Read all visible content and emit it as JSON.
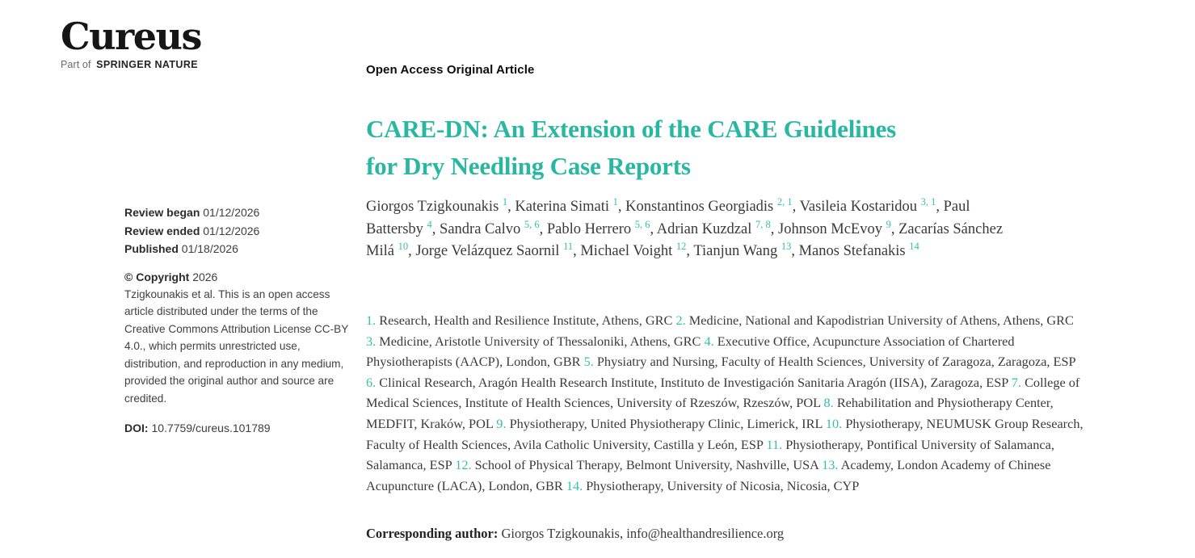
{
  "colors": {
    "accent_teal": "#2ab7a2",
    "accent_teal_light": "#35bfab",
    "text_dark": "#3a3a3a"
  },
  "brand": {
    "wordmark": "Cureus",
    "tagline_prefix": "Part of",
    "tagline_brand": "SPRINGER NATURE"
  },
  "meta": {
    "dates": [
      {
        "label": "Review began",
        "value": "01/12/2026"
      },
      {
        "label": "Review ended",
        "value": "01/12/2026"
      },
      {
        "label": "Published",
        "value": "01/18/2026"
      }
    ],
    "copyright_label": "© Copyright",
    "copyright_year": "2026",
    "copyright_text": "Tzigkounakis et al. This is an open access article distributed under the terms of the Creative Commons Attribution License CC-BY 4.0., which permits unrestricted use, distribution, and reproduction in any medium, provided the original author and source are credited.",
    "doi_label": "DOI:",
    "doi_value": "10.7759/cureus.101789"
  },
  "article": {
    "type_label": "Open Access Original Article",
    "title_lines": [
      "CARE-DN: An Extension of the CARE Guidelines",
      "for Dry Needling Case Reports"
    ],
    "title_full": "CARE-DN: An Extension of the CARE Guidelines for Dry Needling Case Reports",
    "authors": [
      {
        "name": "Giorgos Tzigkounakis",
        "sup": "1"
      },
      {
        "name": "Katerina Simati",
        "sup": "1"
      },
      {
        "name": "Konstantinos Georgiadis",
        "sup": "2, 1"
      },
      {
        "name": "Vasileia Kostaridou",
        "sup": "3, 1"
      },
      {
        "name": "Paul Battersby",
        "sup": "4"
      },
      {
        "name": "Sandra Calvo",
        "sup": "5, 6"
      },
      {
        "name": "Pablo Herrero",
        "sup": "5, 6"
      },
      {
        "name": "Adrian Kuzdzal",
        "sup": "7, 8"
      },
      {
        "name": "Johnson McEvoy",
        "sup": "9"
      },
      {
        "name": "Zacarías Sánchez Milá",
        "sup": "10"
      },
      {
        "name": "Jorge Velázquez Saornil",
        "sup": "11"
      },
      {
        "name": "Michael Voight",
        "sup": "12"
      },
      {
        "name": "Tianjun Wang",
        "sup": "13"
      },
      {
        "name": "Manos Stefanakis",
        "sup": "14"
      }
    ],
    "affiliations": [
      {
        "num": "1.",
        "text": "Research, Health and Resilience Institute, Athens, GRC"
      },
      {
        "num": "2.",
        "text": "Medicine, National and Kapodistrian University of Athens, Athens, GRC"
      },
      {
        "num": "3.",
        "text": "Medicine, Aristotle University of Thessaloniki, Athens, GRC"
      },
      {
        "num": "4.",
        "text": "Executive Office, Acupuncture Association of Chartered Physiotherapists (AACP), London, GBR"
      },
      {
        "num": "5.",
        "text": "Physiatry and Nursing, Faculty of Health Sciences, University of Zaragoza, Zaragoza, ESP"
      },
      {
        "num": "6.",
        "text": "Clinical Research, Aragón Health Research Institute, Instituto de Investigación Sanitaria Aragón (IISA), Zaragoza, ESP"
      },
      {
        "num": "7.",
        "text": "College of Medical Sciences, Institute of Health Sciences, University of Rzeszów, Rzeszów, POL"
      },
      {
        "num": "8.",
        "text": "Rehabilitation and Physiotherapy Center, MEDFIT, Kraków, POL"
      },
      {
        "num": "9.",
        "text": "Physiotherapy, United Physiotherapy Clinic, Limerick, IRL"
      },
      {
        "num": "10.",
        "text": "Physiotherapy, NEUMUSK Group Research, Faculty of Health Sciences, Avila Catholic University, Castilla y León, ESP"
      },
      {
        "num": "11.",
        "text": "Physiotherapy, Pontifical University of Salamanca, Salamanca, ESP"
      },
      {
        "num": "12.",
        "text": "School of Physical Therapy, Belmont University, Nashville, USA"
      },
      {
        "num": "13.",
        "text": "Academy, London Academy of Chinese Acupuncture (LACA), London, GBR"
      },
      {
        "num": "14.",
        "text": "Physiotherapy, University of Nicosia, Nicosia, CYP"
      }
    ],
    "corresponding_label": "Corresponding author:",
    "corresponding_value": "Giorgos Tzigkounakis, info@healthandresilience.org"
  }
}
